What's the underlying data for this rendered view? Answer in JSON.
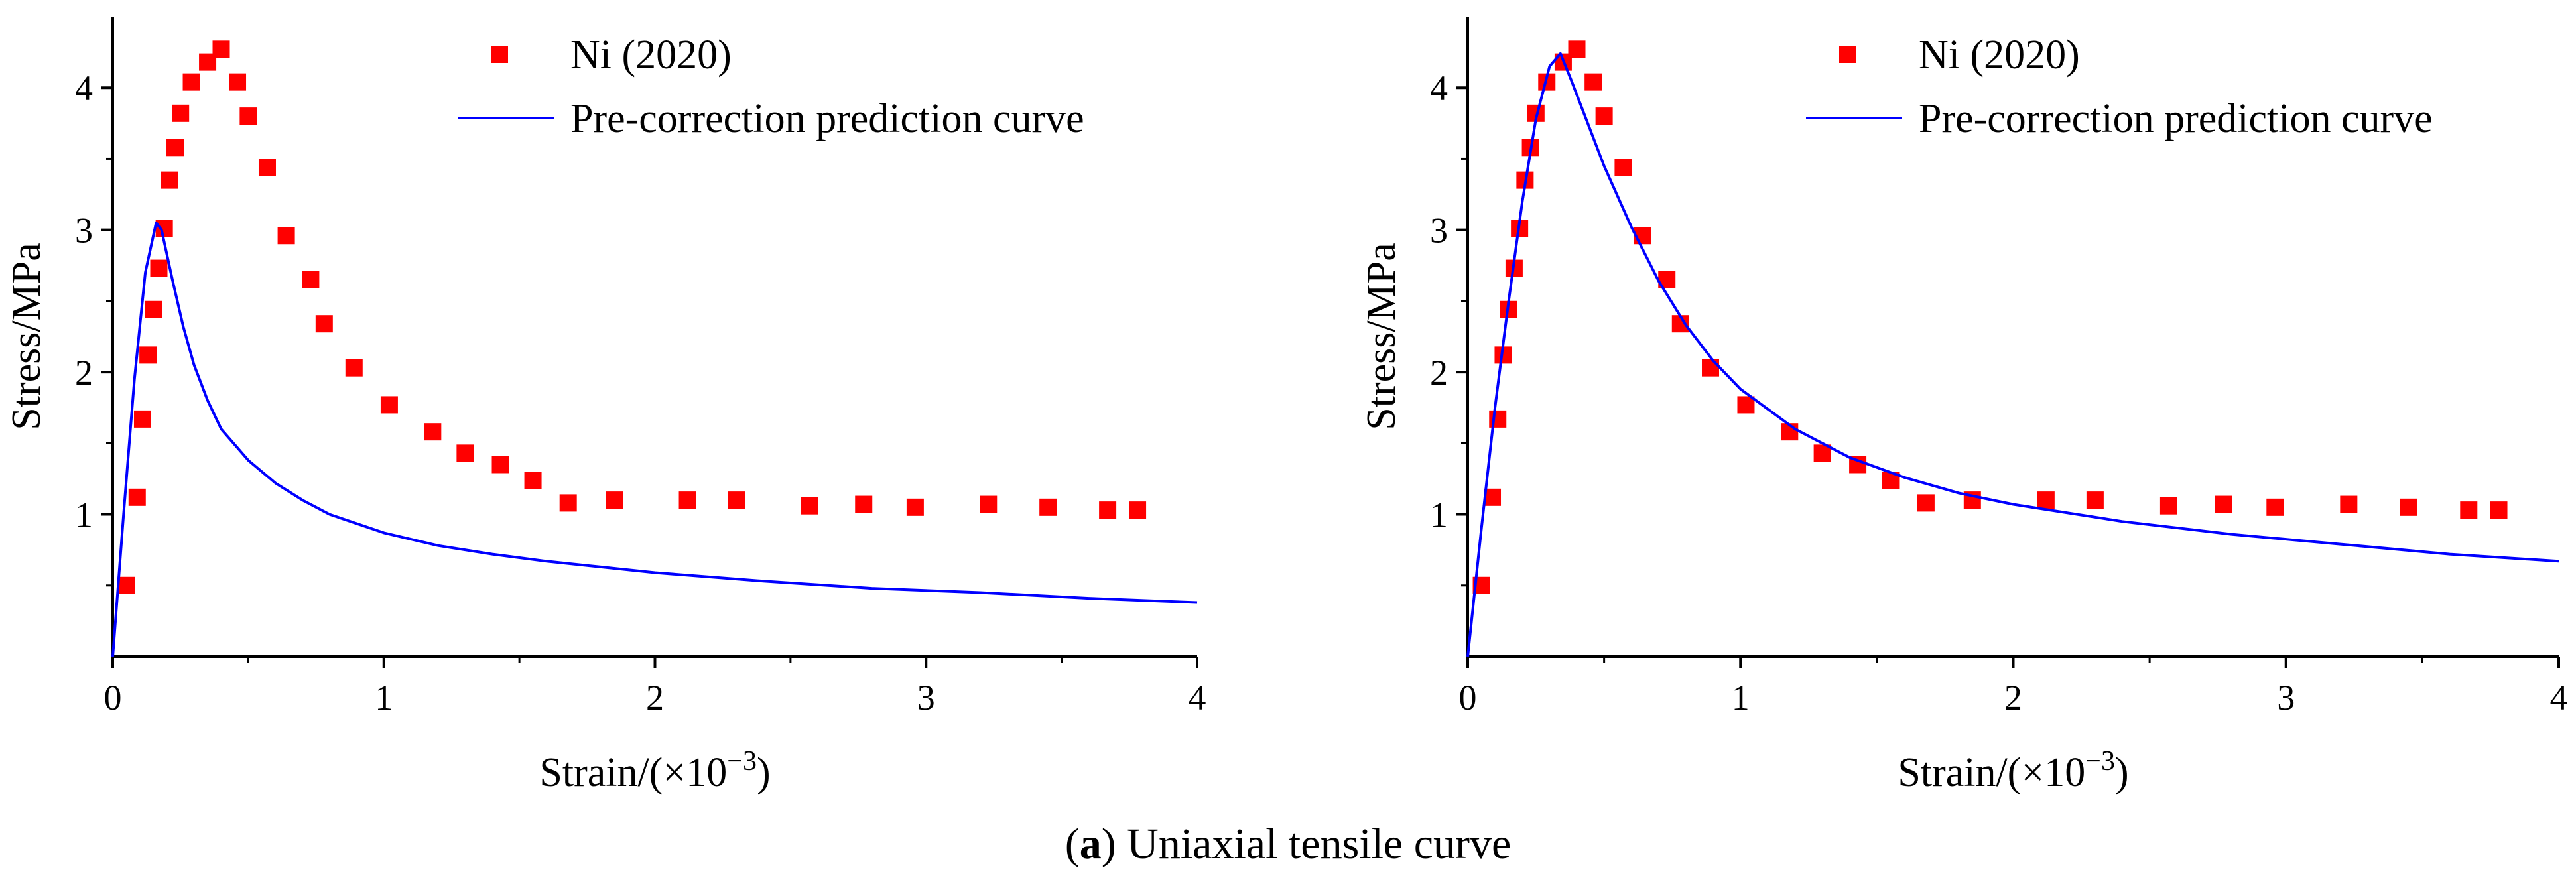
{
  "caption": {
    "label": "a",
    "text": "Uniaxial tensile curve"
  },
  "chart_data": [
    {
      "type": "scatter",
      "title": "",
      "xlabel": "Strain/(×10",
      "xlabel_exp": "−3",
      "xlabel_close": ")",
      "ylabel": "Stress/MPa",
      "xlim": [
        0,
        4
      ],
      "ylim": [
        0,
        4.5
      ],
      "xticks": [
        0,
        1,
        2,
        3,
        4
      ],
      "yticks": [
        1,
        2,
        3,
        4
      ],
      "legend": [
        "Ni (2020)",
        "Pre-correction prediction curve"
      ],
      "legend_position": "top-right",
      "series": [
        {
          "name": "Ni (2020)",
          "kind": "markers",
          "color": "#ff0000",
          "x": [
            0.05,
            0.09,
            0.11,
            0.13,
            0.15,
            0.17,
            0.19,
            0.21,
            0.23,
            0.25,
            0.29,
            0.35,
            0.4,
            0.46,
            0.5,
            0.57,
            0.64,
            0.73,
            0.78,
            0.89,
            1.02,
            1.18,
            1.3,
            1.43,
            1.55,
            1.68,
            1.85,
            2.12,
            2.3,
            2.57,
            2.77,
            2.96,
            3.23,
            3.45,
            3.67,
            3.78
          ],
          "y": [
            0.5,
            1.12,
            1.67,
            2.12,
            2.44,
            2.73,
            3.01,
            3.35,
            3.58,
            3.82,
            4.04,
            4.18,
            4.27,
            4.04,
            3.8,
            3.44,
            2.96,
            2.65,
            2.34,
            2.03,
            1.77,
            1.58,
            1.43,
            1.35,
            1.24,
            1.08,
            1.1,
            1.1,
            1.1,
            1.06,
            1.07,
            1.05,
            1.07,
            1.05,
            1.03,
            1.03
          ]
        },
        {
          "name": "Pre-correction prediction curve",
          "kind": "line",
          "color": "#0000ff",
          "x": [
            0,
            0.04,
            0.08,
            0.12,
            0.16,
            0.18,
            0.22,
            0.26,
            0.3,
            0.35,
            0.4,
            0.5,
            0.6,
            0.7,
            0.8,
            1.0,
            1.2,
            1.4,
            1.6,
            1.8,
            2.0,
            2.4,
            2.8,
            3.2,
            3.6,
            4.0
          ],
          "y": [
            0,
            1.0,
            1.95,
            2.7,
            3.05,
            3.0,
            2.65,
            2.32,
            2.05,
            1.8,
            1.6,
            1.38,
            1.22,
            1.1,
            1.0,
            0.87,
            0.78,
            0.72,
            0.67,
            0.63,
            0.59,
            0.53,
            0.48,
            0.45,
            0.41,
            0.38
          ]
        }
      ]
    },
    {
      "type": "scatter",
      "title": "",
      "xlabel": "Strain/(×10",
      "xlabel_exp": "−3",
      "xlabel_close": ")",
      "ylabel": "Stress/MPa",
      "xlim": [
        0,
        4
      ],
      "ylim": [
        0,
        4.5
      ],
      "xticks": [
        0,
        1,
        2,
        3,
        4
      ],
      "yticks": [
        1,
        2,
        3,
        4
      ],
      "legend": [
        "Ni (2020)",
        "Pre-correction prediction curve"
      ],
      "legend_position": "top-right",
      "series": [
        {
          "name": "Ni (2020)",
          "kind": "markers",
          "color": "#ff0000",
          "x": [
            0.05,
            0.09,
            0.11,
            0.13,
            0.15,
            0.17,
            0.19,
            0.21,
            0.23,
            0.25,
            0.29,
            0.35,
            0.4,
            0.46,
            0.5,
            0.57,
            0.64,
            0.73,
            0.78,
            0.89,
            1.02,
            1.18,
            1.3,
            1.43,
            1.55,
            1.68,
            1.85,
            2.12,
            2.3,
            2.57,
            2.77,
            2.96,
            3.23,
            3.45,
            3.67,
            3.78
          ],
          "y": [
            0.5,
            1.12,
            1.67,
            2.12,
            2.44,
            2.73,
            3.01,
            3.35,
            3.58,
            3.82,
            4.04,
            4.18,
            4.27,
            4.04,
            3.8,
            3.44,
            2.96,
            2.65,
            2.34,
            2.03,
            1.77,
            1.58,
            1.43,
            1.35,
            1.24,
            1.08,
            1.1,
            1.1,
            1.1,
            1.06,
            1.07,
            1.05,
            1.07,
            1.05,
            1.03,
            1.03
          ]
        },
        {
          "name": "Pre-correction prediction curve",
          "kind": "line",
          "color": "#0000ff",
          "x": [
            0,
            0.05,
            0.1,
            0.15,
            0.2,
            0.25,
            0.3,
            0.34,
            0.38,
            0.42,
            0.5,
            0.6,
            0.7,
            0.8,
            0.9,
            1.0,
            1.2,
            1.4,
            1.6,
            1.8,
            2.0,
            2.4,
            2.8,
            3.2,
            3.6,
            4.0
          ],
          "y": [
            0,
            0.9,
            1.75,
            2.5,
            3.2,
            3.78,
            4.15,
            4.24,
            4.05,
            3.85,
            3.45,
            3.02,
            2.64,
            2.33,
            2.08,
            1.88,
            1.6,
            1.4,
            1.26,
            1.15,
            1.07,
            0.95,
            0.86,
            0.79,
            0.72,
            0.67
          ]
        }
      ]
    }
  ]
}
